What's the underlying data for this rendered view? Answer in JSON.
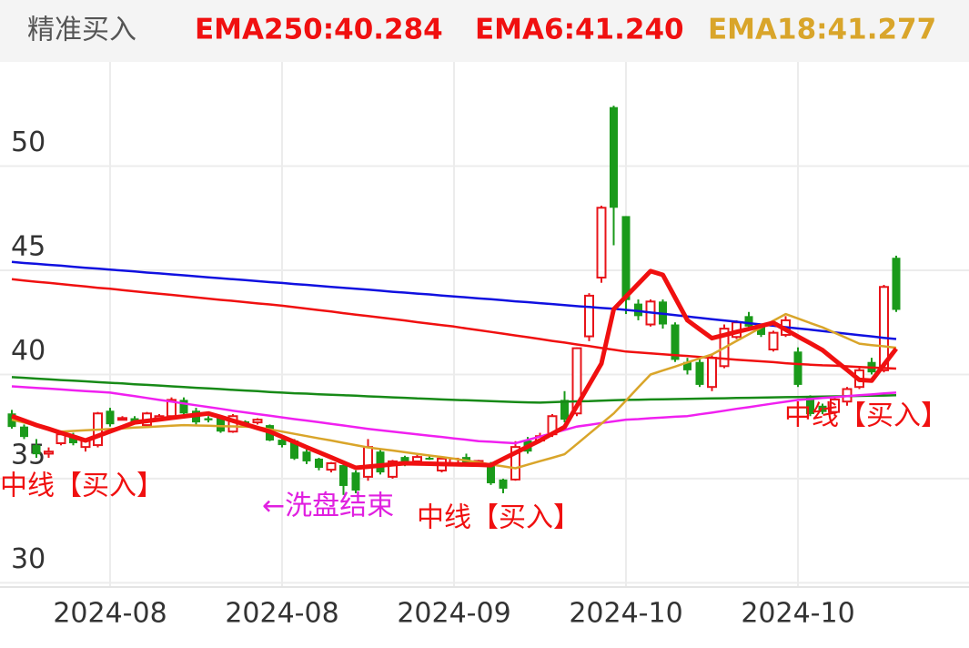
{
  "chart_data": {
    "type": "candlestick",
    "title": "精准买入",
    "categories": [
      null,
      null,
      null,
      null,
      null,
      null,
      null,
      null,
      "2024-08",
      null,
      null,
      null,
      null,
      null,
      null,
      null,
      null,
      null,
      null,
      null,
      null,
      null,
      "2024-08",
      null,
      null,
      null,
      null,
      null,
      null,
      null,
      null,
      null,
      null,
      null,
      null,
      null,
      "2024-09",
      null,
      null,
      null,
      null,
      null,
      null,
      null,
      null,
      null,
      null,
      null,
      null,
      null,
      "2024-10",
      null,
      null,
      null,
      null,
      null,
      null,
      null,
      null,
      null,
      null,
      null,
      null,
      null,
      "2024-10",
      null,
      null,
      null,
      null,
      null,
      null,
      null,
      null
    ],
    "open": [
      38.13,
      37.5,
      36.61,
      36.2,
      36.7,
      37.04,
      36.52,
      36.61,
      38.26,
      37.83,
      37.9,
      37.57,
      37.9,
      38.0,
      38.78,
      38.26,
      37.9,
      37.91,
      37.26,
      37.75,
      37.7,
      37.57,
      36.87,
      36.83,
      36.3,
      35.96,
      35.43,
      35.65,
      35.3,
      35.09,
      36.3,
      35.09,
      36.04,
      35.83,
      36.0,
      35.39,
      35.65,
      36.04,
      35.8,
      35.74,
      34.96,
      34.96,
      36.83,
      36.83,
      37.13,
      38.78,
      38.13,
      41.83,
      44.65,
      52.83,
      47.6,
      43.4,
      42.4,
      43.5,
      42.4,
      40.6,
      40.6,
      39.4,
      40.4,
      41.8,
      42.8,
      42.3,
      41.2,
      41.9,
      41.1,
      38.9,
      38.5,
      38.2,
      38.7,
      39.4,
      40.6,
      40.2,
      45.6
    ],
    "high": [
      38.3,
      37.6,
      36.9,
      36.5,
      37.2,
      37.2,
      36.9,
      38.2,
      38.4,
      38.0,
      38.0,
      38.2,
      38.1,
      38.9,
      38.9,
      38.4,
      38.0,
      38.0,
      38.1,
      37.8,
      37.9,
      37.6,
      36.9,
      36.9,
      36.4,
      36.0,
      35.8,
      35.7,
      35.4,
      36.9,
      36.4,
      35.9,
      36.1,
      36.2,
      36.1,
      36.0,
      36.0,
      36.2,
      35.9,
      35.8,
      35.0,
      36.8,
      37.0,
      37.2,
      38.1,
      39.2,
      41.3,
      43.9,
      48.1,
      52.9,
      47.6,
      43.6,
      43.6,
      43.6,
      42.5,
      40.8,
      40.8,
      41.0,
      42.4,
      42.6,
      43.0,
      42.4,
      42.1,
      42.8,
      41.3,
      39.0,
      38.6,
      38.9,
      39.4,
      40.3,
      40.8,
      44.3,
      45.7
    ],
    "low": [
      37.4,
      36.9,
      36.0,
      36.0,
      36.6,
      36.6,
      36.3,
      36.5,
      37.5,
      37.8,
      37.6,
      37.5,
      37.8,
      37.9,
      38.0,
      37.6,
      37.7,
      37.2,
      37.2,
      37.5,
      37.6,
      36.8,
      36.5,
      35.9,
      35.7,
      35.4,
      35.3,
      34.22,
      34.3,
      34.9,
      35.2,
      35.0,
      35.6,
      35.8,
      35.9,
      35.3,
      35.6,
      35.6,
      35.7,
      34.7,
      34.3,
      34.9,
      36.2,
      36.8,
      37.0,
      37.7,
      38.0,
      41.6,
      44.4,
      46.2,
      42.9,
      42.6,
      42.3,
      42.2,
      40.6,
      40.0,
      39.4,
      39.2,
      40.3,
      41.7,
      42.2,
      41.8,
      41.1,
      41.8,
      39.4,
      38.0,
      38.1,
      38.0,
      38.5,
      39.3,
      40.0,
      40.1,
      43.0
    ],
    "close": [
      37.48,
      37.0,
      36.17,
      36.3,
      37.13,
      36.7,
      36.83,
      38.13,
      37.61,
      37.91,
      37.7,
      38.13,
      38.0,
      38.78,
      38.13,
      37.7,
      37.8,
      37.26,
      38.0,
      37.6,
      37.83,
      36.83,
      36.61,
      35.96,
      35.83,
      35.52,
      35.74,
      34.65,
      34.43,
      36.52,
      35.3,
      35.83,
      35.65,
      36.04,
      35.95,
      35.96,
      35.96,
      35.65,
      35.85,
      34.78,
      34.52,
      36.52,
      36.3,
      37.04,
      38.0,
      37.83,
      41.26,
      43.78,
      48.0,
      48.0,
      43.57,
      42.8,
      43.5,
      42.4,
      40.7,
      40.2,
      39.5,
      40.8,
      42.2,
      42.5,
      42.3,
      41.9,
      42.0,
      42.6,
      39.5,
      38.1,
      38.2,
      38.8,
      39.3,
      40.2,
      40.1,
      44.2,
      43.1
    ],
    "up_color": "#e8141a",
    "down_color": "#1a9a1a",
    "series": [
      {
        "name": "EMA250:40.284",
        "color": "#f01010",
        "values": [
          44.57,
          44.51,
          44.45,
          44.4,
          44.34,
          44.28,
          44.22,
          44.16,
          44.11,
          44.05,
          43.99,
          43.93,
          43.87,
          43.82,
          43.76,
          43.7,
          43.64,
          43.58,
          43.53,
          43.47,
          43.41,
          43.36,
          43.3,
          43.23,
          43.16,
          43.09,
          43.02,
          42.94,
          42.87,
          42.8,
          42.73,
          42.66,
          42.59,
          42.51,
          42.44,
          42.37,
          42.3,
          42.21,
          42.13,
          42.04,
          41.96,
          41.87,
          41.79,
          41.7,
          41.61,
          41.53,
          41.44,
          41.36,
          41.27,
          41.19,
          41.1,
          41.06,
          41.01,
          40.97,
          40.93,
          40.89,
          40.84,
          40.8,
          40.76,
          40.71,
          40.67,
          40.63,
          40.59,
          40.54,
          40.5,
          40.47,
          40.44,
          40.42,
          40.39,
          40.36,
          40.33,
          40.31,
          40.28
        ]
      },
      {
        "name": "EMA6:41.240",
        "color": "#f01010",
        "values": [
          38.0,
          37.79,
          37.57,
          37.39,
          37.2,
          37.02,
          36.83,
          37.05,
          37.27,
          37.48,
          37.7,
          37.77,
          37.84,
          37.92,
          37.99,
          38.06,
          38.13,
          37.96,
          37.78,
          37.61,
          37.43,
          37.26,
          37.01,
          36.76,
          36.51,
          36.27,
          36.02,
          35.77,
          35.52,
          35.58,
          35.63,
          35.69,
          35.74,
          35.73,
          35.72,
          35.7,
          35.69,
          35.68,
          35.67,
          35.65,
          35.95,
          36.24,
          36.54,
          36.83,
          37.16,
          37.48,
          38.49,
          39.51,
          40.52,
          43.13,
          43.74,
          44.35,
          44.96,
          44.78,
          43.69,
          42.6,
          42.17,
          41.74,
          41.89,
          42.04,
          42.18,
          42.33,
          42.48,
          42.15,
          41.82,
          41.5,
          41.17,
          40.69,
          40.22,
          39.74,
          39.7,
          40.47,
          41.24
        ]
      },
      {
        "name": "EMA18:41.277",
        "color": "#d9a52a",
        "values": [
          37.83,
          37.69,
          37.54,
          37.4,
          37.26,
          37.29,
          37.32,
          37.35,
          37.38,
          37.41,
          37.45,
          37.48,
          37.51,
          37.54,
          37.57,
          37.55,
          37.54,
          37.52,
          37.51,
          37.49,
          37.48,
          37.37,
          37.26,
          37.15,
          37.04,
          36.93,
          36.83,
          36.72,
          36.61,
          36.5,
          36.42,
          36.35,
          36.27,
          36.19,
          36.11,
          36.04,
          35.96,
          35.87,
          35.78,
          35.68,
          35.59,
          35.5,
          35.67,
          35.84,
          36.0,
          36.17,
          36.66,
          37.15,
          37.64,
          38.13,
          38.75,
          39.38,
          40.0,
          40.19,
          40.38,
          40.58,
          40.77,
          40.96,
          41.28,
          41.61,
          41.93,
          42.25,
          42.58,
          42.9,
          42.69,
          42.47,
          42.26,
          42.0,
          41.74,
          41.48,
          41.41,
          41.35,
          41.28
        ]
      },
      {
        "color": "#1010e0",
        "values": [
          45.4,
          45.35,
          45.31,
          45.26,
          45.22,
          45.17,
          45.12,
          45.08,
          45.03,
          44.99,
          44.94,
          44.89,
          44.85,
          44.8,
          44.76,
          44.71,
          44.66,
          44.62,
          44.57,
          44.53,
          44.48,
          44.43,
          44.39,
          44.34,
          44.3,
          44.25,
          44.2,
          44.16,
          44.11,
          44.07,
          44.02,
          43.97,
          43.93,
          43.88,
          43.84,
          43.79,
          43.74,
          43.7,
          43.65,
          43.61,
          43.56,
          43.51,
          43.47,
          43.42,
          43.38,
          43.33,
          43.28,
          43.24,
          43.19,
          43.15,
          43.1,
          43.04,
          42.97,
          42.91,
          42.85,
          42.78,
          42.72,
          42.65,
          42.59,
          42.53,
          42.46,
          42.4,
          42.34,
          42.27,
          42.21,
          42.15,
          42.08,
          42.02,
          41.95,
          41.89,
          41.83,
          41.76,
          41.7
        ]
      },
      {
        "color": "#178a17",
        "values": [
          39.87,
          39.84,
          39.8,
          39.77,
          39.73,
          39.7,
          39.67,
          39.63,
          39.6,
          39.57,
          39.53,
          39.5,
          39.47,
          39.43,
          39.4,
          39.36,
          39.33,
          39.3,
          39.26,
          39.23,
          39.2,
          39.16,
          39.13,
          39.1,
          39.08,
          39.05,
          39.03,
          39.0,
          38.98,
          38.95,
          38.93,
          38.9,
          38.88,
          38.85,
          38.83,
          38.8,
          38.78,
          38.76,
          38.74,
          38.72,
          38.7,
          38.68,
          38.66,
          38.65,
          38.67,
          38.69,
          38.71,
          38.72,
          38.74,
          38.76,
          38.78,
          38.79,
          38.8,
          38.81,
          38.82,
          38.83,
          38.84,
          38.85,
          38.86,
          38.87,
          38.88,
          38.89,
          38.9,
          38.91,
          38.92,
          38.93,
          38.94,
          38.95,
          38.96,
          38.97,
          38.98,
          38.99,
          39.0
        ]
      },
      {
        "color": "#f020f0",
        "values": [
          39.43,
          39.39,
          39.35,
          39.32,
          39.28,
          39.24,
          39.2,
          39.17,
          39.13,
          39.04,
          38.96,
          38.87,
          38.78,
          38.7,
          38.61,
          38.52,
          38.44,
          38.35,
          38.26,
          38.18,
          38.1,
          38.02,
          37.94,
          37.86,
          37.79,
          37.71,
          37.63,
          37.55,
          37.47,
          37.39,
          37.32,
          37.26,
          37.19,
          37.13,
          37.06,
          37.0,
          36.93,
          36.87,
          36.8,
          36.77,
          36.73,
          36.7,
          36.86,
          37.02,
          37.18,
          37.34,
          37.5,
          37.58,
          37.67,
          37.75,
          37.83,
          37.86,
          37.9,
          37.93,
          37.97,
          38.0,
          38.09,
          38.17,
          38.26,
          38.35,
          38.43,
          38.52,
          38.61,
          38.69,
          38.78,
          38.82,
          38.87,
          38.91,
          38.96,
          39.0,
          39.04,
          39.09,
          39.13
        ]
      }
    ],
    "ylim": [
      29.8,
      55
    ],
    "yticks": [
      30,
      35,
      40,
      45,
      50
    ],
    "grid": true,
    "annotations": [
      {
        "text": "中线【买入】",
        "color": "#f01010"
      },
      {
        "text": "←洗盘结束",
        "color": "#e020e0"
      },
      {
        "text": "中线【买入】",
        "color": "#f01010"
      },
      {
        "text": "中线【买入】",
        "color": "#f01010"
      }
    ]
  }
}
